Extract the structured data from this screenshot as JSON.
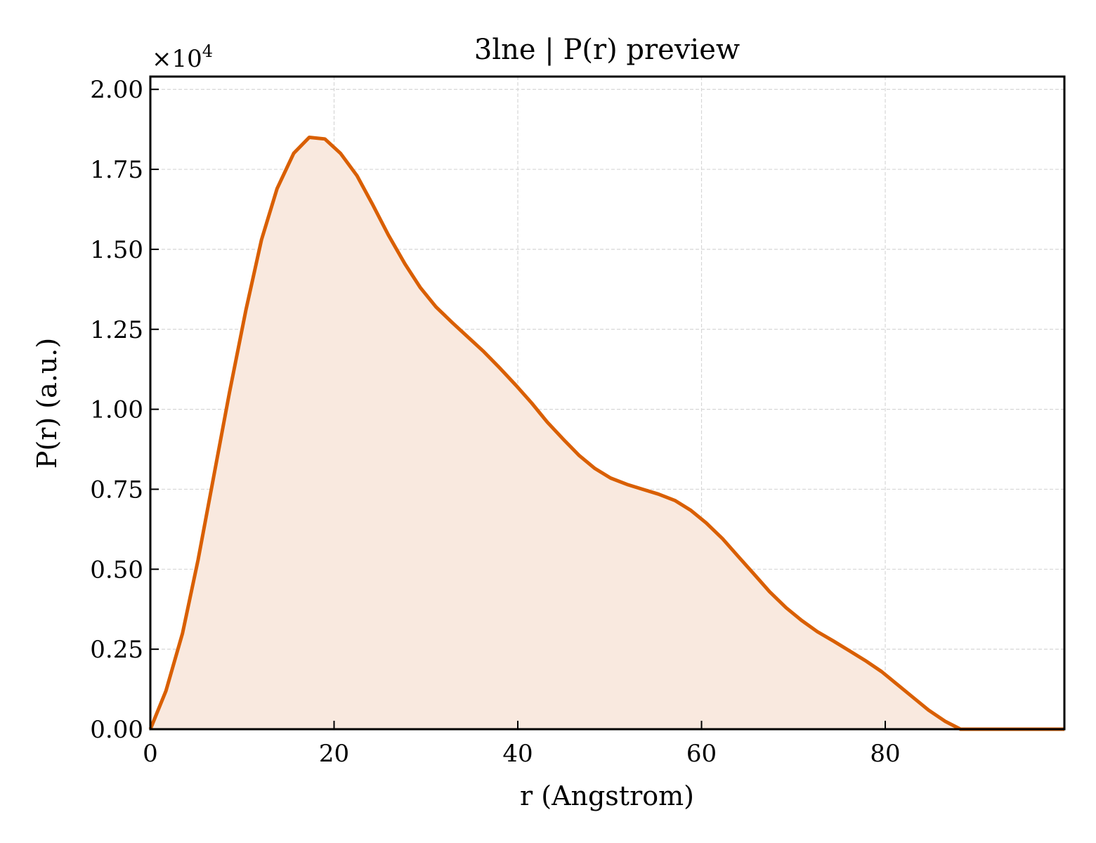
{
  "chart_data": {
    "type": "area",
    "title": "3lne | P(r) preview",
    "xlabel": "r (Angstrom)",
    "ylabel": "P(r) (a.u.)",
    "y_offset_label": "×10",
    "y_offset_exponent": "4",
    "y_scale": 10000,
    "xlim": [
      0,
      99.5
    ],
    "ylim": [
      0,
      2.04
    ],
    "x_ticks": [
      0,
      20,
      40,
      60,
      80
    ],
    "x_tick_labels": [
      "0",
      "20",
      "40",
      "60",
      "80"
    ],
    "y_ticks": [
      0,
      0.25,
      0.5,
      0.75,
      1.0,
      1.25,
      1.5,
      1.75,
      2.0
    ],
    "y_tick_labels": [
      "0.00",
      "0.25",
      "0.50",
      "0.75",
      "1.00",
      "1.25",
      "1.50",
      "1.75",
      "2.00"
    ],
    "grid": true,
    "line_color": "#d95f02",
    "fill_color": "#f9e9df",
    "series": [
      {
        "x": [
          0,
          1.7,
          3.5,
          5.2,
          6.9,
          8.6,
          10.4,
          12.1,
          13.8,
          15.6,
          17.3,
          19.0,
          20.7,
          22.5,
          24.2,
          25.9,
          27.7,
          29.4,
          31.1,
          32.9,
          34.6,
          36.3,
          38.0,
          39.8,
          41.5,
          43.2,
          45.0,
          46.7,
          48.4,
          50.1,
          51.9,
          53.6,
          55.3,
          57.1,
          58.8,
          60.5,
          62.3,
          64.0,
          65.7,
          67.4,
          69.2,
          70.9,
          72.6,
          74.4,
          76.1,
          77.8,
          79.6,
          81.3,
          83.0,
          84.7,
          86.5,
          88.2,
          89.9,
          91.7,
          93.4,
          95.1,
          96.8,
          98.6,
          99.5
        ],
        "values": [
          0.0,
          0.12,
          0.3,
          0.53,
          0.79,
          1.05,
          1.31,
          1.53,
          1.69,
          1.8,
          1.85,
          1.845,
          1.8,
          1.73,
          1.64,
          1.545,
          1.455,
          1.38,
          1.32,
          1.27,
          1.225,
          1.18,
          1.13,
          1.075,
          1.02,
          0.96,
          0.905,
          0.855,
          0.815,
          0.785,
          0.765,
          0.75,
          0.735,
          0.715,
          0.685,
          0.645,
          0.595,
          0.54,
          0.485,
          0.43,
          0.38,
          0.34,
          0.305,
          0.275,
          0.245,
          0.215,
          0.18,
          0.14,
          0.1,
          0.06,
          0.025,
          0.0,
          -0.02,
          -0.035,
          -0.045,
          -0.05,
          -0.055,
          -0.06,
          -0.06
        ]
      }
    ]
  }
}
